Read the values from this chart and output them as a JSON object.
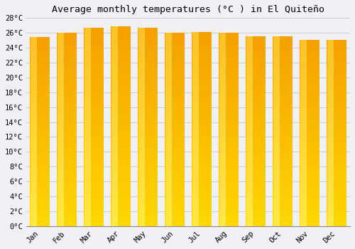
{
  "title": "Average monthly temperatures (°C ) in El Quiteño",
  "months": [
    "Jan",
    "Feb",
    "Mar",
    "Apr",
    "May",
    "Jun",
    "Jul",
    "Aug",
    "Sep",
    "Oct",
    "Nov",
    "Dec"
  ],
  "temperatures": [
    25.4,
    26.0,
    26.7,
    26.9,
    26.7,
    26.0,
    26.1,
    26.0,
    25.5,
    25.5,
    25.1,
    25.1
  ],
  "ylim": [
    0,
    28
  ],
  "yticks": [
    0,
    2,
    4,
    6,
    8,
    10,
    12,
    14,
    16,
    18,
    20,
    22,
    24,
    26,
    28
  ],
  "bar_color_bottom": "#FFCC00",
  "bar_color_top": "#F5A800",
  "bar_color_mid_left": "#FFE060",
  "background_color": "#f0f0f5",
  "plot_bg_color": "#f0f0f5",
  "grid_color": "#cccccc",
  "title_fontsize": 9.5,
  "tick_fontsize": 7.5,
  "font_family": "monospace",
  "bar_width": 0.72
}
